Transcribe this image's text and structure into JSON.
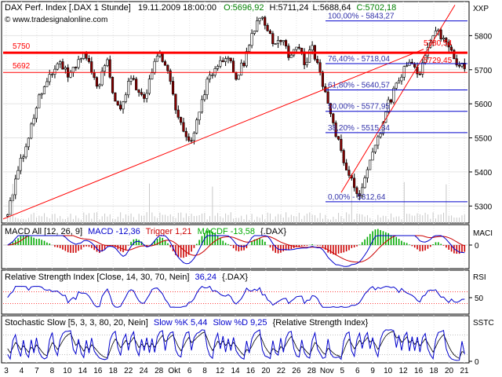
{
  "header": {
    "title": "DAX Perf. Index [.DAX  1 Stunde]",
    "datetime": "19.11.2009 18:00:00",
    "ohlc": {
      "open": "O:5696,92",
      "high": "H:5711,24",
      "low": "L:5688,64",
      "close": "C:5702,18"
    },
    "axis_code": "XXP",
    "watermark": "© www.tradesignalonline.com"
  },
  "colors": {
    "candle_up": "#ffffff",
    "candle_down": "#8b0000",
    "candle_edge": "#000000",
    "resistance": "#ff0000",
    "fib": "#0000cc",
    "fib_text": "#3333aa",
    "indicator": "#0000cc",
    "macd_signal": "#cc0000",
    "macd_hist": "#00aa00",
    "grid": "#e4e4e4"
  },
  "chart_data": [
    {
      "type": "candlestick",
      "panel": "price",
      "ylim": [
        5250,
        5900
      ],
      "y_ticks": [
        "5800",
        "5700",
        "5600",
        "5500",
        "5400",
        "5300"
      ],
      "horizontal_lines": [
        {
          "label": "5750",
          "value": 5750,
          "style": "thick"
        },
        {
          "label": "5692",
          "value": 5692,
          "style": "thin"
        }
      ],
      "fibonacci": [
        {
          "label": "100,00% - 5843,27",
          "value": 5843.27
        },
        {
          "label": "76,40% - 5718,04",
          "value": 5718.04
        },
        {
          "label": "61,80% - 5640,57",
          "value": 5640.57
        },
        {
          "label": "50,00% - 5577,95",
          "value": 5577.95
        },
        {
          "label": "38,20% - 5515,34",
          "value": 5515.34
        },
        {
          "label": "0,00% - 5312,64",
          "value": 5312.64
        }
      ],
      "price_labels": [
        {
          "label": "5780,54",
          "value": 5780.54
        },
        {
          "label": "5729,45",
          "value": 5729.45
        }
      ],
      "path": [
        5270,
        5380,
        5450,
        5530,
        5610,
        5660,
        5690,
        5720,
        5680,
        5710,
        5740,
        5700,
        5650,
        5730,
        5620,
        5580,
        5690,
        5640,
        5600,
        5700,
        5750,
        5700,
        5600,
        5520,
        5480,
        5560,
        5650,
        5700,
        5730,
        5740,
        5680,
        5720,
        5800,
        5850,
        5830,
        5760,
        5800,
        5740,
        5780,
        5720,
        5760,
        5690,
        5610,
        5520,
        5440,
        5380,
        5320,
        5400,
        5460,
        5520,
        5600,
        5650,
        5700,
        5720,
        5680,
        5740,
        5820,
        5800,
        5760,
        5720,
        5702
      ]
    },
    {
      "type": "line",
      "panel": "macd",
      "title": "MACD All [12, 26, 9]",
      "series": [
        {
          "name": "MACD",
          "label": "MACD -12,36"
        },
        {
          "name": "Trigger",
          "label": "Trigger 1,21"
        },
        {
          "name": "MACDF",
          "label": "MACDF -13,58"
        }
      ],
      "symbol": "{.DAX}",
      "axis_name": "MACI",
      "y_ticks": [
        "0"
      ]
    },
    {
      "type": "line",
      "panel": "rsi",
      "title": "Relative Strength Index [Close, 14, 30, 70, Nein]",
      "value_label": "36,24",
      "symbol": "{.DAX}",
      "axis_name": "RSI",
      "y_ticks": [
        "50"
      ],
      "ylim": [
        0,
        100
      ],
      "bands": [
        30,
        70
      ]
    },
    {
      "type": "line",
      "panel": "stochastic",
      "title": "Stochastic Slow [5, 3, 3, 80, 20, Nein]",
      "series": [
        {
          "name": "Slow %K",
          "label": "Slow %K 5,44"
        },
        {
          "name": "Slow %D",
          "label": "Slow %D 9,25"
        }
      ],
      "symbol": "{Relative Strength Index}",
      "axis_name": "SSTC",
      "y_ticks": [
        "0"
      ],
      "ylim": [
        0,
        100
      ]
    }
  ],
  "x_axis": {
    "ticks": [
      "3",
      "4",
      "7",
      "8",
      "10",
      "14",
      "16",
      "18",
      "22",
      "24",
      "28",
      "Okt",
      "6",
      "8",
      "12",
      "14",
      "16",
      "20",
      "22",
      "26",
      "28",
      "Nov",
      "5",
      "6",
      "9",
      "10",
      "12",
      "16",
      "18",
      "20",
      "21"
    ]
  }
}
